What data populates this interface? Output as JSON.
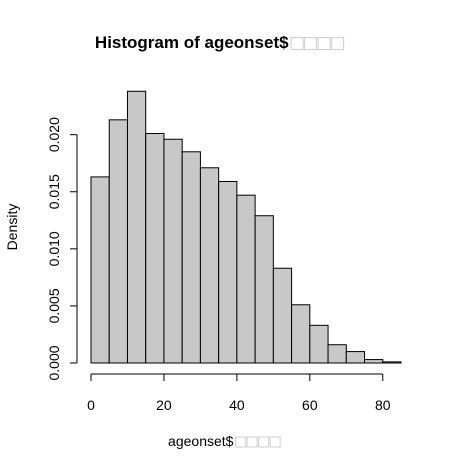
{
  "chart_data": {
    "type": "bar",
    "title": "Histogram of ageonset$",
    "title_suffix_boxes": 4,
    "xlabel": "ageonset$",
    "xlabel_suffix_boxes": 4,
    "ylabel": "Density",
    "xlim": [
      0,
      85
    ],
    "ylim": [
      0,
      0.024
    ],
    "x_ticks": [
      0,
      20,
      40,
      60,
      80
    ],
    "y_ticks": [
      0.0,
      0.005,
      0.01,
      0.015,
      0.02
    ],
    "y_tick_labels": [
      "0.000",
      "0.005",
      "0.010",
      "0.015",
      "0.020"
    ],
    "bin_width": 5,
    "bin_starts": [
      0,
      5,
      10,
      15,
      20,
      25,
      30,
      35,
      40,
      45,
      50,
      55,
      60,
      65,
      70,
      75,
      80
    ],
    "values": [
      0.0163,
      0.0213,
      0.0238,
      0.0201,
      0.0196,
      0.0185,
      0.0171,
      0.0159,
      0.0147,
      0.0129,
      0.0083,
      0.0051,
      0.0033,
      0.0016,
      0.001,
      0.0003,
      0.0001
    ],
    "bar_color": "#c8c8c8",
    "bar_border_color": "#000000",
    "grid": false,
    "legend": "none"
  }
}
